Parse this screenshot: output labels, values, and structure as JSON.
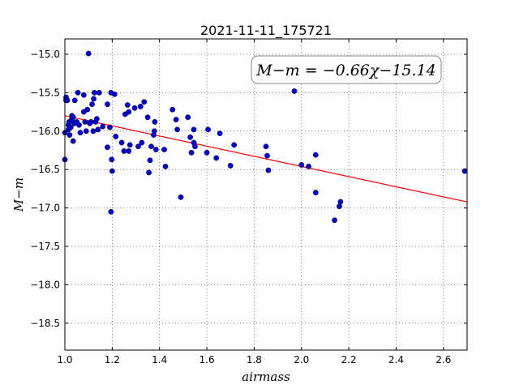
{
  "chart_data": {
    "type": "scatter",
    "title": "2021-11-11_175721",
    "xlabel": "airmass",
    "ylabel": "M−m",
    "xlim": [
      1.0,
      2.7
    ],
    "ylim": [
      -14.8,
      -18.85
    ],
    "y_inverted": true,
    "grid": true,
    "x_ticks": [
      1.0,
      1.2,
      1.4,
      1.6,
      1.8,
      2.0,
      2.2,
      2.4,
      2.6
    ],
    "x_tick_labels": [
      "1.0",
      "1.2",
      "1.4",
      "1.6",
      "1.8",
      "2.0",
      "2.2",
      "2.4",
      "2.6"
    ],
    "y_ticks": [
      -15.0,
      -15.5,
      -16.0,
      -16.5,
      -17.0,
      -17.5,
      -18.0,
      -18.5
    ],
    "y_tick_labels": [
      "−15.0",
      "−15.5",
      "−16.0",
      "−16.5",
      "−17.0",
      "−17.5",
      "−18.0",
      "−18.5"
    ],
    "annotation": "M−m = −0.66χ−15.14",
    "annotation_location": "top-right",
    "fit": {
      "slope": -0.66,
      "intercept": -15.14,
      "color": "#ff0000"
    },
    "point_color": "#0000cc",
    "points": [
      [
        1.0,
        -16.02
      ],
      [
        1.0,
        -16.37
      ],
      [
        1.005,
        -15.56
      ],
      [
        1.005,
        -15.6
      ],
      [
        1.01,
        -15.6
      ],
      [
        1.015,
        -15.92
      ],
      [
        1.015,
        -15.98
      ],
      [
        1.018,
        -15.88
      ],
      [
        1.02,
        -16.05
      ],
      [
        1.025,
        -15.95
      ],
      [
        1.028,
        -15.85
      ],
      [
        1.03,
        -15.8
      ],
      [
        1.03,
        -15.87
      ],
      [
        1.035,
        -15.82
      ],
      [
        1.035,
        -16.13
      ],
      [
        1.04,
        -15.9
      ],
      [
        1.042,
        -15.6
      ],
      [
        1.05,
        -15.88
      ],
      [
        1.055,
        -15.5
      ],
      [
        1.06,
        -15.92
      ],
      [
        1.065,
        -16.02
      ],
      [
        1.08,
        -15.53
      ],
      [
        1.08,
        -15.75
      ],
      [
        1.085,
        -15.88
      ],
      [
        1.09,
        -16.0
      ],
      [
        1.095,
        -15.72
      ],
      [
        1.1,
        -14.99
      ],
      [
        1.105,
        -15.9
      ],
      [
        1.11,
        -15.88
      ],
      [
        1.115,
        -15.65
      ],
      [
        1.12,
        -16.0
      ],
      [
        1.122,
        -15.58
      ],
      [
        1.125,
        -15.5
      ],
      [
        1.13,
        -15.88
      ],
      [
        1.135,
        -15.84
      ],
      [
        1.14,
        -15.98
      ],
      [
        1.145,
        -15.5
      ],
      [
        1.16,
        -15.94
      ],
      [
        1.18,
        -15.65
      ],
      [
        1.18,
        -16.21
      ],
      [
        1.19,
        -15.95
      ],
      [
        1.195,
        -17.05
      ],
      [
        1.195,
        -15.5
      ],
      [
        1.198,
        -16.37
      ],
      [
        1.2,
        -16.52
      ],
      [
        1.21,
        -15.52
      ],
      [
        1.215,
        -16.07
      ],
      [
        1.24,
        -16.15
      ],
      [
        1.25,
        -16.26
      ],
      [
        1.255,
        -15.78
      ],
      [
        1.265,
        -15.66
      ],
      [
        1.27,
        -15.75
      ],
      [
        1.27,
        -16.26
      ],
      [
        1.275,
        -16.18
      ],
      [
        1.295,
        -15.7
      ],
      [
        1.31,
        -16.2
      ],
      [
        1.32,
        -15.68
      ],
      [
        1.325,
        -16.15
      ],
      [
        1.335,
        -15.62
      ],
      [
        1.35,
        -15.82
      ],
      [
        1.355,
        -16.54
      ],
      [
        1.36,
        -16.38
      ],
      [
        1.365,
        -16.2
      ],
      [
        1.375,
        -16.05
      ],
      [
        1.378,
        -16.0
      ],
      [
        1.38,
        -15.88
      ],
      [
        1.385,
        -16.24
      ],
      [
        1.42,
        -16.24
      ],
      [
        1.425,
        -16.46
      ],
      [
        1.455,
        -15.72
      ],
      [
        1.47,
        -15.85
      ],
      [
        1.475,
        -15.98
      ],
      [
        1.49,
        -16.86
      ],
      [
        1.52,
        -15.82
      ],
      [
        1.53,
        -16.08
      ],
      [
        1.535,
        -16.28
      ],
      [
        1.545,
        -15.98
      ],
      [
        1.545,
        -16.15
      ],
      [
        1.55,
        -16.2
      ],
      [
        1.6,
        -16.28
      ],
      [
        1.605,
        -15.98
      ],
      [
        1.64,
        -16.35
      ],
      [
        1.655,
        -16.03
      ],
      [
        1.7,
        -16.45
      ],
      [
        1.715,
        -16.18
      ],
      [
        1.85,
        -16.2
      ],
      [
        1.855,
        -16.32
      ],
      [
        1.86,
        -16.51
      ],
      [
        1.97,
        -15.48
      ],
      [
        2.0,
        -16.44
      ],
      [
        2.03,
        -16.46
      ],
      [
        2.06,
        -16.8
      ],
      [
        2.06,
        -16.31
      ],
      [
        2.14,
        -17.16
      ],
      [
        2.16,
        -16.98
      ],
      [
        2.165,
        -16.92
      ],
      [
        2.69,
        -16.52
      ]
    ]
  }
}
